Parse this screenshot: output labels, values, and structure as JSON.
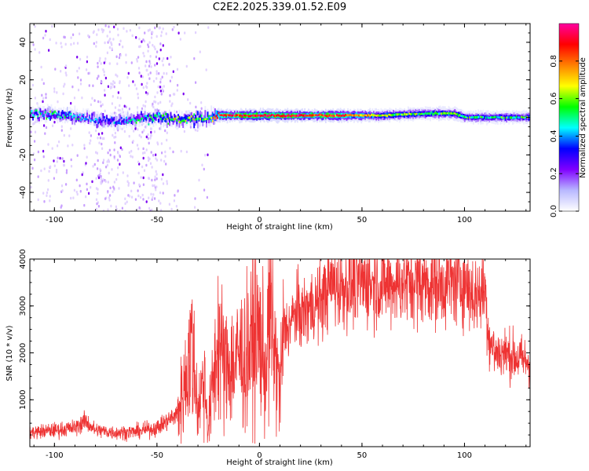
{
  "title": "C2E2.2025.339.01.52.E09",
  "colors": {
    "snr_line": "#ee3333",
    "axis": "#000000",
    "colormap": [
      "#ffffff",
      "#b8b8ff",
      "#8000ff",
      "#0000ff",
      "#00ffff",
      "#00ff00",
      "#ffff00",
      "#ff8000",
      "#ff0000",
      "#ff00a0"
    ]
  },
  "chart_data": [
    {
      "type": "heatmap",
      "title": "",
      "xlabel": "Height of straight line (km)",
      "ylabel": "Frequency (Hz)",
      "xlim": [
        -112,
        132
      ],
      "ylim": [
        -50,
        50
      ],
      "xticks": [
        "-100",
        "-50",
        "0",
        "50",
        "100"
      ],
      "yticks": [
        "-40",
        "-20",
        "0",
        "20",
        "40"
      ],
      "colorbar": {
        "label": "Normalized spectral amplitude",
        "range": [
          0,
          1
        ],
        "ticks": [
          "0.0",
          "0.2",
          "0.4",
          "0.6",
          "0.8"
        ]
      },
      "signal_track": {
        "x": [
          -112,
          -95,
          -85,
          -80,
          -70,
          -60,
          -50,
          -40,
          -30,
          -25,
          -20,
          0,
          20,
          40,
          60,
          80,
          95,
          100,
          132
        ],
        "center_freq": [
          2,
          1,
          0,
          -1,
          -2,
          -1,
          0,
          -1,
          -1,
          0,
          1,
          1,
          1,
          1,
          1,
          2,
          2,
          0,
          0
        ],
        "peak_amplitude": [
          0.45,
          0.5,
          0.4,
          0.35,
          0.4,
          0.45,
          0.55,
          0.6,
          0.55,
          0.6,
          0.85,
          0.95,
          0.9,
          0.85,
          0.6,
          0.55,
          0.6,
          0.5,
          0.5
        ]
      }
    },
    {
      "type": "line",
      "title": "",
      "xlabel": "Height of straight line (km)",
      "ylabel": "SNR (10 * v/v)",
      "xlim": [
        -112,
        132
      ],
      "ylim": [
        0,
        4000
      ],
      "xticks": [
        "-100",
        "-50",
        "0",
        "50",
        "100"
      ],
      "yticks": [
        "1000",
        "2000",
        "3000",
        "4000"
      ],
      "series": [
        {
          "x": [
            -112,
            -100,
            -90,
            -85,
            -80,
            -70,
            -60,
            -50,
            -45,
            -40,
            -37,
            -35,
            -33,
            -30,
            -27,
            -25,
            -22,
            -20,
            -17,
            -15,
            -12,
            -10,
            -7,
            -5,
            -2,
            0,
            3,
            5,
            8,
            10,
            12,
            15,
            18,
            20,
            25,
            30,
            35,
            40,
            50,
            60,
            70,
            80,
            90,
            95,
            100,
            105,
            110,
            112,
            115,
            120,
            125,
            132
          ],
          "y": [
            300,
            350,
            400,
            550,
            350,
            300,
            320,
            400,
            550,
            700,
            1200,
            1700,
            2200,
            800,
            1500,
            400,
            1600,
            2400,
            1600,
            1800,
            1700,
            2000,
            1800,
            2100,
            2300,
            2400,
            1500,
            2900,
            1800,
            1200,
            2500,
            2600,
            2900,
            2800,
            3000,
            3100,
            3500,
            3400,
            3500,
            3450,
            3500,
            3500,
            3450,
            3500,
            3500,
            3200,
            3350,
            2300,
            2000,
            2000,
            1900,
            1800
          ]
        }
      ]
    }
  ]
}
